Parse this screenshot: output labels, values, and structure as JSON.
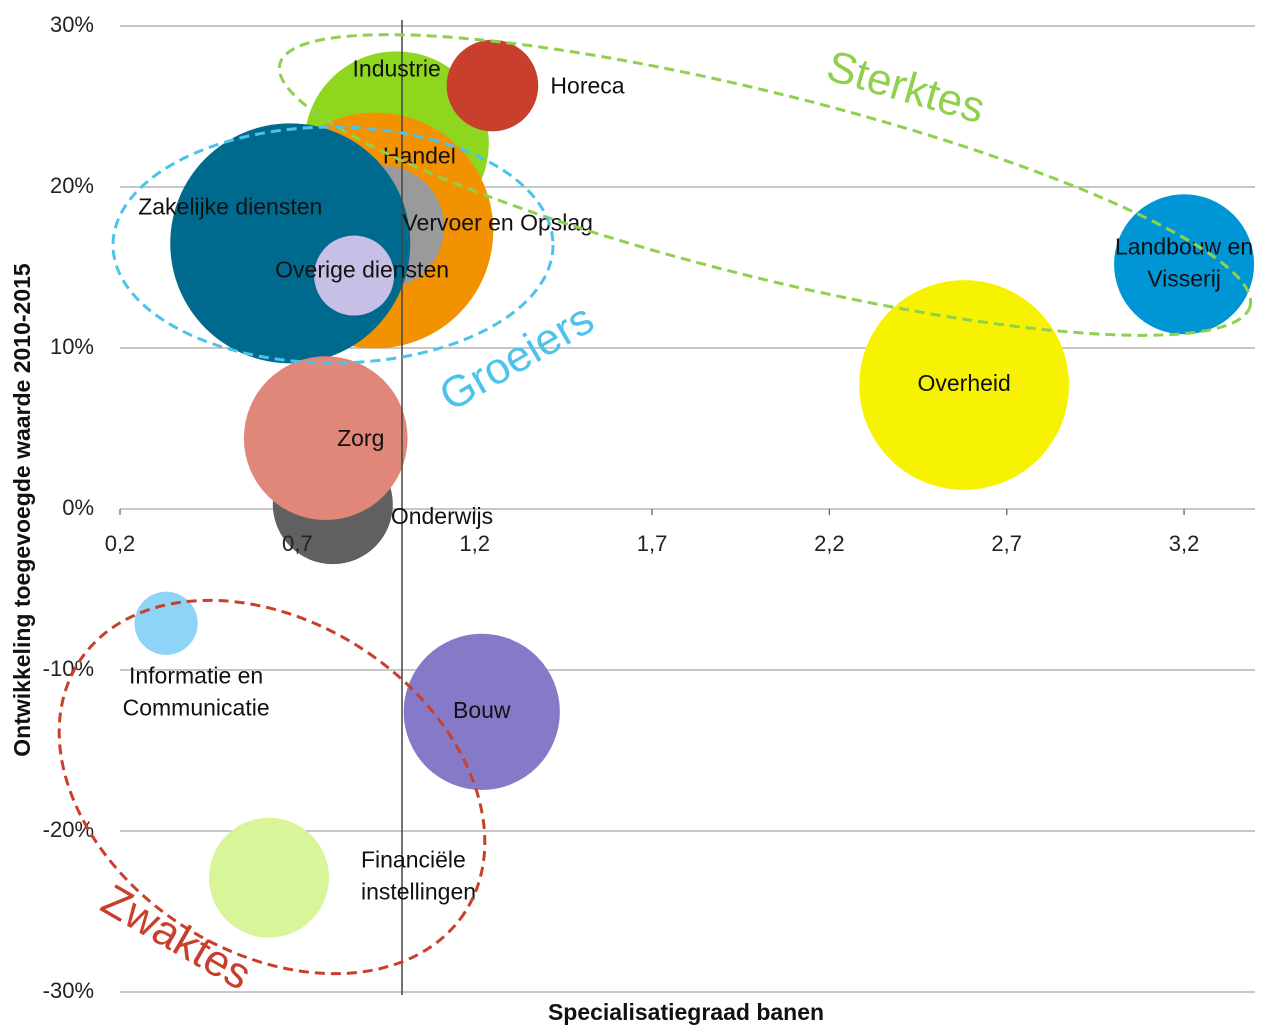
{
  "chart_data": {
    "type": "bubble",
    "xlabel": "Specialisatiegraad banen",
    "ylabel": "Ontwikkeling toegevoegde waarde 2010-2015",
    "xlim": [
      0.2,
      3.4
    ],
    "ylim": [
      -30,
      30
    ],
    "xticks": [
      {
        "value": 0.2,
        "label": "0,2"
      },
      {
        "value": 0.7,
        "label": "0,7"
      },
      {
        "value": 1.2,
        "label": "1,2"
      },
      {
        "value": 1.7,
        "label": "1,7"
      },
      {
        "value": 2.2,
        "label": "2,2"
      },
      {
        "value": 2.7,
        "label": "2,7"
      },
      {
        "value": 3.2,
        "label": "3,2"
      }
    ],
    "yticks": [
      {
        "value": -30,
        "label": "-30%"
      },
      {
        "value": -20,
        "label": "-20%"
      },
      {
        "value": -10,
        "label": "-10%"
      },
      {
        "value": 0,
        "label": "0%"
      },
      {
        "value": 10,
        "label": "10%"
      },
      {
        "value": 20,
        "label": "20%"
      },
      {
        "value": 30,
        "label": "30%"
      }
    ],
    "grid": true,
    "series": [
      {
        "name": "Industrie",
        "color": "#8fd61e",
        "x": 0.98,
        "y": 22.7,
        "size": 85
      },
      {
        "name": "Horeca",
        "color": "#c8402d",
        "x": 1.25,
        "y": 26.3,
        "size": 21
      },
      {
        "name": "Handel",
        "color": "#f39200",
        "x": 0.92,
        "y": 17.3,
        "size": 139
      },
      {
        "name": "Vervoer en Opslag",
        "color": "#9a9a9a",
        "x": 0.94,
        "y": 17.5,
        "size": 38
      },
      {
        "name": "Zakelijke diensten",
        "color": "#006a8e",
        "x": 0.68,
        "y": 16.5,
        "size": 144
      },
      {
        "name": "Overige diensten",
        "color": "#c8bfe6",
        "x": 0.86,
        "y": 14.5,
        "size": 16
      },
      {
        "name": "Landbouw en Visserij",
        "color": "#0096d6",
        "x": 3.2,
        "y": 15.2,
        "size": 49
      },
      {
        "name": "Overheid",
        "color": "#f7f300",
        "x": 2.58,
        "y": 7.7,
        "size": 110
      },
      {
        "name": "Onderwijs",
        "color": "#606060",
        "x": 0.8,
        "y": 0.3,
        "size": 36
      },
      {
        "name": "Zorg",
        "color": "#e0877a",
        "x": 0.78,
        "y": 4.4,
        "size": 67
      },
      {
        "name": "Informatie en Communicatie",
        "color": "#8dd4f7",
        "x": 0.33,
        "y": -7.1,
        "size": 10
      },
      {
        "name": "Bouw",
        "color": "#8679c8",
        "x": 1.22,
        "y": -12.6,
        "size": 61
      },
      {
        "name": "Financiële instellingen",
        "color": "#d8f59a",
        "x": 0.62,
        "y": -22.9,
        "size": 36
      }
    ],
    "annotations": [
      "Sterktes",
      "Groeiers",
      "Zwaktes"
    ]
  }
}
